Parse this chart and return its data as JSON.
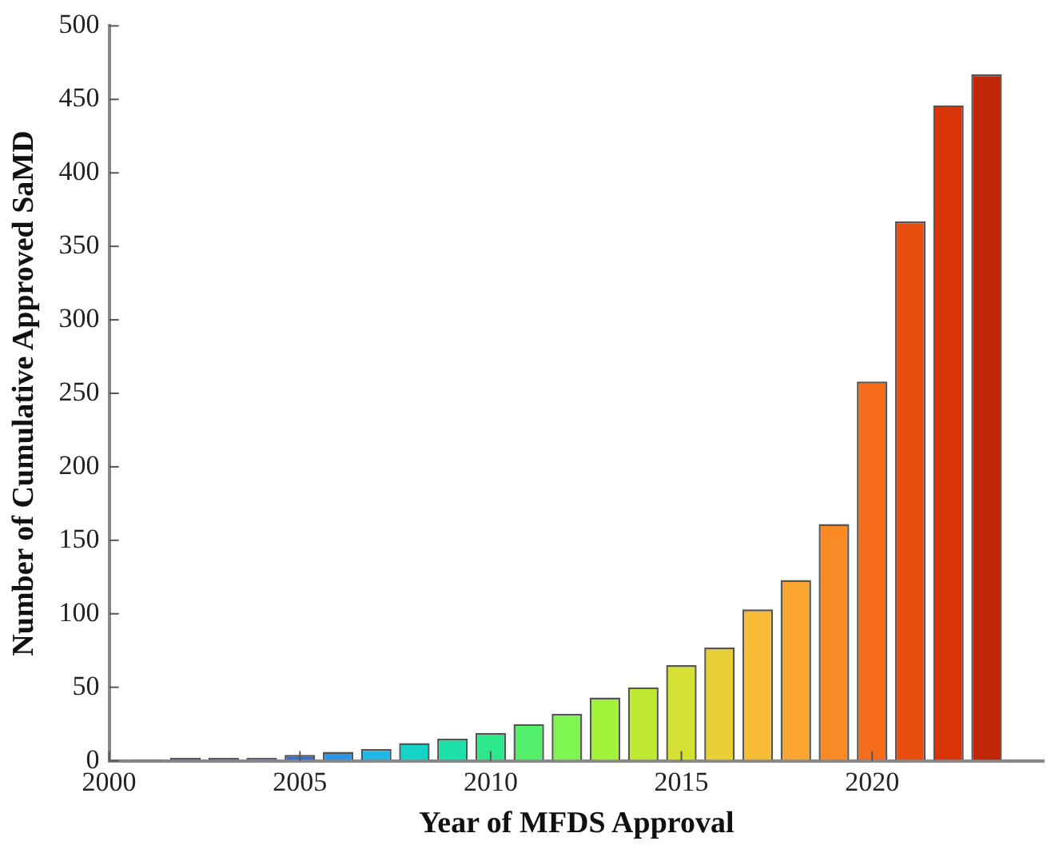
{
  "chart_data": {
    "type": "bar",
    "xlabel": "Year of MFDS Approval",
    "ylabel": "Number of Cumulative Approved SaMD",
    "x": [
      2001,
      2002,
      2003,
      2004,
      2005,
      2006,
      2007,
      2008,
      2009,
      2010,
      2011,
      2012,
      2013,
      2014,
      2015,
      2016,
      2017,
      2018,
      2019,
      2020,
      2021,
      2022,
      2023
    ],
    "values": [
      1,
      2,
      2,
      2,
      4,
      6,
      8,
      12,
      15,
      19,
      25,
      32,
      43,
      50,
      65,
      77,
      103,
      123,
      161,
      258,
      367,
      446,
      467
    ],
    "colors": [
      "#2b2d63",
      "#2e3d8a",
      "#3048a8",
      "#3158c8",
      "#2f6fe0",
      "#2a95ec",
      "#1fb7e6",
      "#16d3c8",
      "#1de0a8",
      "#2ee88c",
      "#55f06a",
      "#7ef550",
      "#a2f23c",
      "#bfe835",
      "#d6e032",
      "#e8cf35",
      "#f5bb35",
      "#f9a530",
      "#fa8a25",
      "#f56d1a",
      "#e84e10",
      "#d8360a",
      "#c02505"
    ],
    "xlim": [
      2000,
      2024.5
    ],
    "xticks": [
      2000,
      2005,
      2010,
      2015,
      2020
    ],
    "ylim": [
      0,
      500
    ],
    "yticks": [
      0,
      50,
      100,
      150,
      200,
      250,
      300,
      350,
      400,
      450,
      500
    ],
    "grid": false,
    "legend": false
  }
}
